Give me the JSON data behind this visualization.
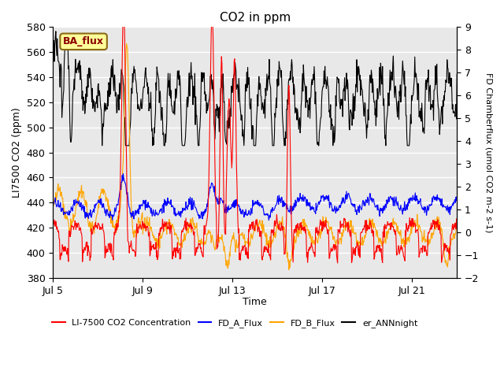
{
  "title": "CO2 in ppm",
  "xlabel": "Time",
  "ylabel_left": "LI7500 CO2 (ppm)",
  "ylabel_right": "FD Chamberflux (umol CO2 m-2 s-1)",
  "ylim_left": [
    380,
    580
  ],
  "ylim_right": [
    -2.0,
    9.0
  ],
  "yticks_left": [
    380,
    400,
    420,
    440,
    460,
    480,
    500,
    520,
    540,
    560,
    580
  ],
  "yticks_right": [
    -2.0,
    -1.0,
    0.0,
    1.0,
    2.0,
    3.0,
    4.0,
    5.0,
    6.0,
    7.0,
    8.0,
    9.0
  ],
  "xtick_labels": [
    "Jul 5",
    "Jul 9",
    "Jul 13",
    "Jul 17",
    "Jul 21"
  ],
  "annotation_text": "BA_flux",
  "annotation_color": "#8B0000",
  "annotation_bg": "#FFFF99",
  "annotation_border": "#8B6914",
  "line_colors": {
    "li7500": "#FF0000",
    "fd_a": "#0000FF",
    "fd_b": "#FFA500",
    "ann": "#000000"
  },
  "legend_labels": [
    "LI-7500 CO2 Concentration",
    "FD_A_Flux",
    "FD_B_Flux",
    "er_ANNnight"
  ],
  "bg_color": "#E8E8E8",
  "grid_color": "#FFFFFF"
}
